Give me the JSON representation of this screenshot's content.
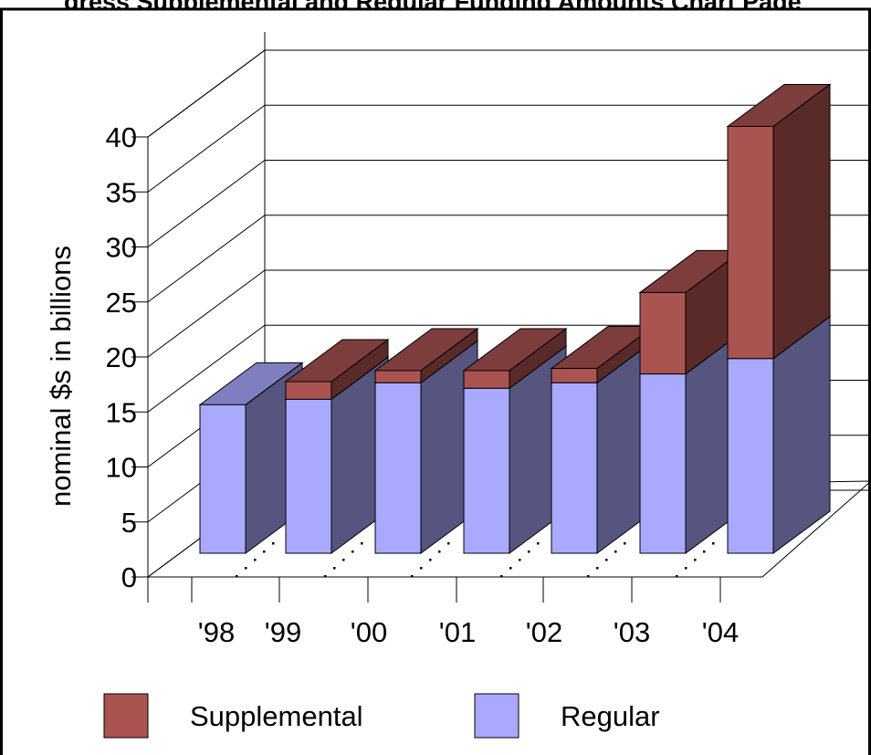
{
  "chart_data": {
    "type": "bar",
    "stacked": true,
    "three_d": true,
    "title": "gress Supplemental and Regular Funding Amounts Chart Page",
    "ylabel": "nominal $s in billions",
    "xlabel": "",
    "categories": [
      "'98",
      "'99",
      "'00",
      "'01",
      "'02",
      "'03",
      "'04"
    ],
    "ylim": [
      0,
      40
    ],
    "yticks": [
      "0",
      "5",
      "10",
      "15",
      "20",
      "25",
      "30",
      "35",
      "40"
    ],
    "series": [
      {
        "name": "Regular",
        "values": [
          13.5,
          14.0,
          15.5,
          15.0,
          15.5,
          16.3,
          17.7
        ],
        "color": "#a9a9ff",
        "side_color": "#555580",
        "top_color": "#7f7fc0"
      },
      {
        "name": "Supplemental",
        "values": [
          0,
          1.6,
          1.1,
          1.6,
          1.3,
          7.4,
          21.1
        ],
        "color": "#aa5452",
        "side_color": "#5a2a28",
        "top_color": "#7e3d3d"
      }
    ],
    "legend": {
      "position": "bottom",
      "items": [
        {
          "label": "Supplemental",
          "color": "#aa5452"
        },
        {
          "label": "Regular",
          "color": "#a9a9ff"
        }
      ]
    },
    "grid": true
  }
}
